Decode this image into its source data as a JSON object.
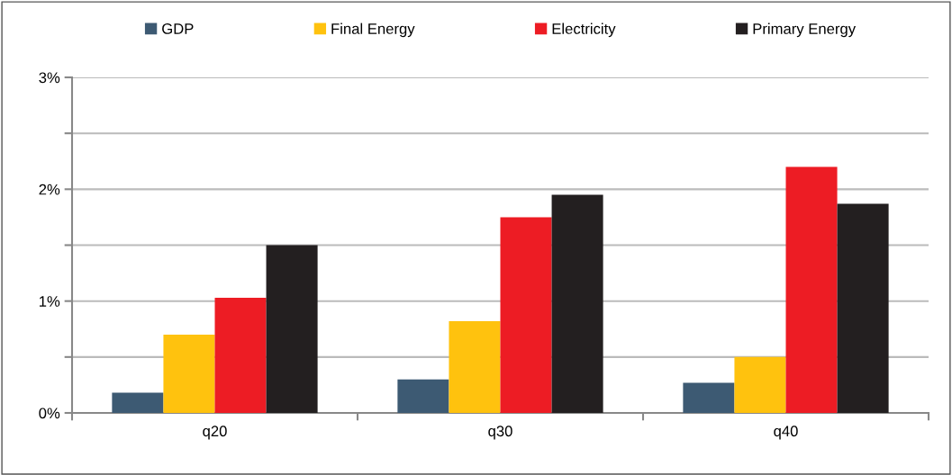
{
  "chart_data": {
    "type": "bar",
    "categories": [
      "q20",
      "q30",
      "q40"
    ],
    "series": [
      {
        "name": "GDP",
        "color": "#3d5a73",
        "values": [
          0.18,
          0.3,
          0.27
        ]
      },
      {
        "name": "Final Energy",
        "color": "#ffc20e",
        "values": [
          0.7,
          0.82,
          0.5
        ]
      },
      {
        "name": "Electricity",
        "color": "#ed1c24",
        "values": [
          1.03,
          1.75,
          2.2
        ]
      },
      {
        "name": "Primary Energy",
        "color": "#231f20",
        "values": [
          1.5,
          1.95,
          1.87
        ]
      }
    ],
    "ylim": [
      0,
      3
    ],
    "yticks": [
      {
        "value": 0,
        "label": "0%"
      },
      {
        "value": 0.5,
        "label": null
      },
      {
        "value": 1,
        "label": "1%"
      },
      {
        "value": 1.5,
        "label": null
      },
      {
        "value": 2,
        "label": "2%"
      },
      {
        "value": 2.5,
        "label": null
      },
      {
        "value": 3,
        "label": "3%"
      }
    ],
    "grid": "y",
    "legend": "top"
  }
}
